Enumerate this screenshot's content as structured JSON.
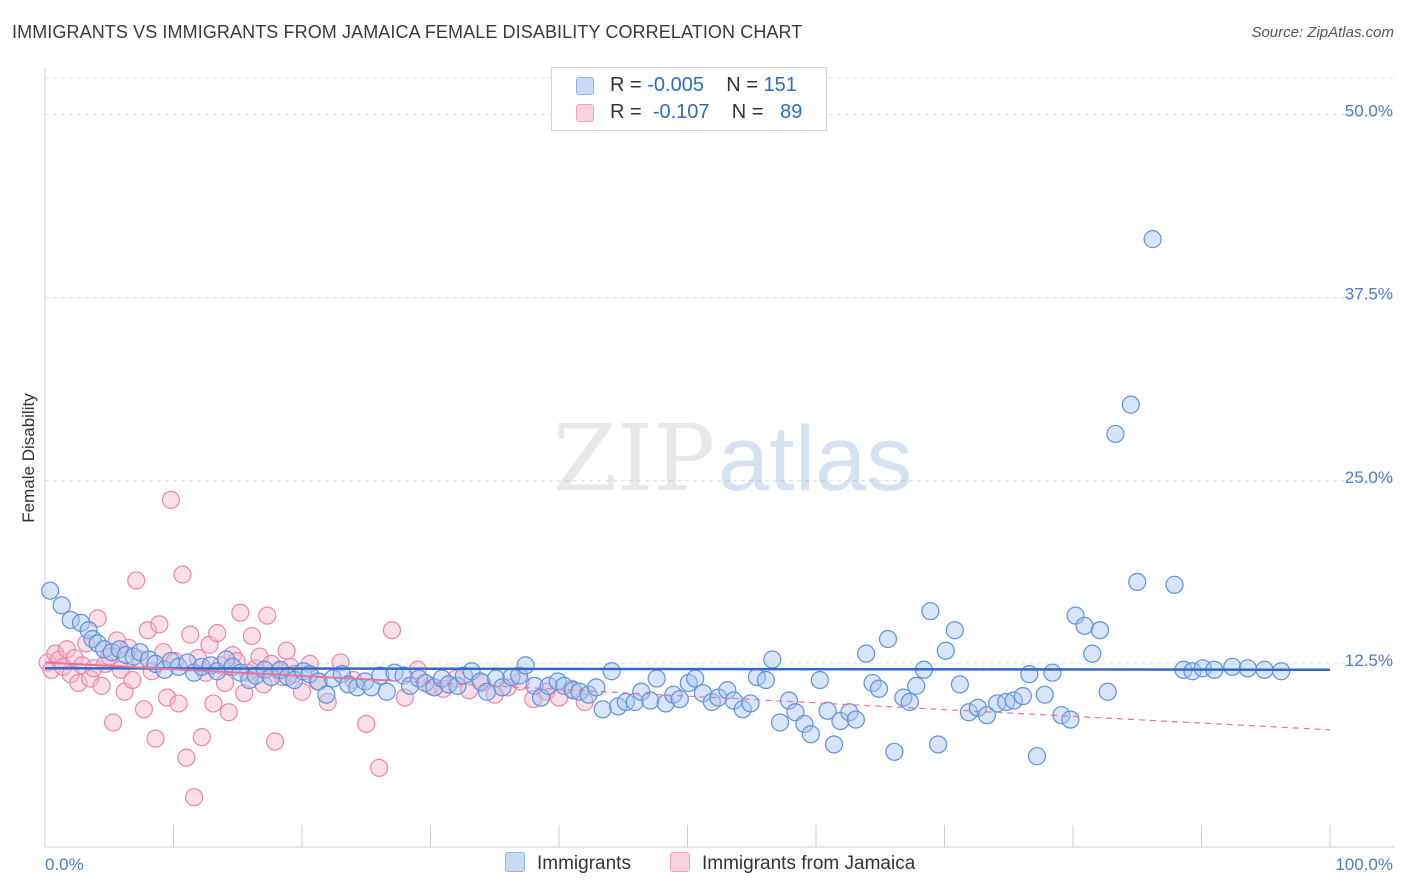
{
  "title": "IMMIGRANTS VS IMMIGRANTS FROM JAMAICA FEMALE DISABILITY CORRELATION CHART",
  "source": "Source: ZipAtlas.com",
  "watermark": {
    "zip": "ZIP",
    "atlas": "atlas"
  },
  "legend": {
    "rows": [
      {
        "r_label": "R =",
        "r_value": "-0.005",
        "n_label": "N =",
        "n_value": "151",
        "color": "#8fb4e8"
      },
      {
        "r_label": "R =",
        "r_value": "-0.107",
        "n_label": "N =",
        "n_value": "89",
        "color": "#f2a3bd"
      }
    ]
  },
  "bottom_legend": [
    {
      "label": "Immigrants",
      "color": "#8fb4e8"
    },
    {
      "label": "Immigrants from Jamaica",
      "color": "#f2a3bd"
    }
  ],
  "chart_data": {
    "type": "scatter",
    "title": "IMMIGRANTS VS IMMIGRANTS FROM JAMAICA FEMALE DISABILITY CORRELATION CHART",
    "xlabel": "",
    "ylabel": "Female Disability",
    "xlim": [
      0,
      100
    ],
    "ylim": [
      0,
      52.5
    ],
    "x_tick_labels": [
      "0.0%",
      "100.0%"
    ],
    "y_ticks": [
      12.5,
      25.0,
      37.5,
      50.0
    ],
    "y_tick_labels": [
      "12.5%",
      "25.0%",
      "37.5%",
      "50.0%"
    ],
    "grid": "horizontal dashed",
    "legend_position": "top-center",
    "series": [
      {
        "name": "Immigrants",
        "color": "#6f9be0",
        "trend": {
          "x": [
            0,
            100
          ],
          "y": [
            12.2,
            12.1
          ],
          "style": "solid",
          "color": "#2f6ac9"
        },
        "points": [
          [
            0.4,
            17.5
          ],
          [
            1.3,
            16.5
          ],
          [
            2.0,
            15.5
          ],
          [
            2.8,
            15.3
          ],
          [
            3.4,
            14.8
          ],
          [
            3.7,
            14.2
          ],
          [
            4.1,
            13.9
          ],
          [
            4.6,
            13.5
          ],
          [
            5.2,
            13.3
          ],
          [
            5.8,
            13.5
          ],
          [
            6.3,
            13.1
          ],
          [
            6.9,
            13.0
          ],
          [
            7.4,
            13.3
          ],
          [
            8.1,
            12.8
          ],
          [
            8.6,
            12.5
          ],
          [
            9.3,
            12.1
          ],
          [
            9.8,
            12.7
          ],
          [
            10.4,
            12.3
          ],
          [
            11.1,
            12.6
          ],
          [
            11.6,
            11.9
          ],
          [
            12.2,
            12.3
          ],
          [
            12.9,
            12.4
          ],
          [
            13.4,
            12.0
          ],
          [
            14.1,
            12.8
          ],
          [
            14.6,
            12.3
          ],
          [
            15.2,
            11.9
          ],
          [
            15.9,
            11.4
          ],
          [
            16.4,
            11.7
          ],
          [
            17.1,
            12.1
          ],
          [
            17.6,
            11.6
          ],
          [
            18.3,
            12.1
          ],
          [
            18.9,
            11.6
          ],
          [
            19.4,
            11.4
          ],
          [
            20.1,
            12.0
          ],
          [
            20.6,
            11.8
          ],
          [
            21.3,
            11.3
          ],
          [
            21.9,
            10.4
          ],
          [
            22.4,
            11.5
          ],
          [
            23.1,
            11.8
          ],
          [
            23.6,
            11.1
          ],
          [
            24.3,
            10.9
          ],
          [
            24.9,
            11.3
          ],
          [
            25.4,
            10.9
          ],
          [
            26.1,
            11.7
          ],
          [
            26.6,
            10.6
          ],
          [
            27.2,
            11.9
          ],
          [
            27.9,
            11.7
          ],
          [
            28.4,
            11.0
          ],
          [
            29.1,
            11.5
          ],
          [
            29.6,
            11.2
          ],
          [
            30.3,
            10.9
          ],
          [
            30.9,
            11.5
          ],
          [
            31.4,
            11.1
          ],
          [
            32.1,
            11.0
          ],
          [
            32.6,
            11.7
          ],
          [
            33.2,
            12.0
          ],
          [
            33.9,
            11.3
          ],
          [
            34.4,
            10.6
          ],
          [
            35.1,
            11.5
          ],
          [
            35.6,
            10.9
          ],
          [
            36.3,
            11.6
          ],
          [
            36.9,
            11.7
          ],
          [
            37.4,
            12.4
          ],
          [
            38.1,
            11.0
          ],
          [
            38.6,
            10.2
          ],
          [
            39.2,
            11.0
          ],
          [
            39.9,
            11.3
          ],
          [
            40.4,
            11.0
          ],
          [
            41.1,
            10.7
          ],
          [
            41.6,
            10.6
          ],
          [
            42.3,
            10.4
          ],
          [
            42.9,
            10.9
          ],
          [
            43.4,
            9.4
          ],
          [
            44.1,
            12.0
          ],
          [
            44.6,
            9.6
          ],
          [
            45.2,
            9.9
          ],
          [
            45.9,
            9.9
          ],
          [
            46.4,
            10.6
          ],
          [
            47.1,
            10.0
          ],
          [
            47.6,
            11.5
          ],
          [
            48.3,
            9.8
          ],
          [
            48.9,
            10.4
          ],
          [
            49.4,
            10.1
          ],
          [
            50.1,
            11.2
          ],
          [
            50.6,
            11.5
          ],
          [
            51.2,
            10.5
          ],
          [
            51.9,
            9.9
          ],
          [
            52.4,
            10.2
          ],
          [
            53.1,
            10.7
          ],
          [
            53.6,
            10.0
          ],
          [
            54.3,
            9.4
          ],
          [
            54.9,
            9.8
          ],
          [
            55.4,
            11.6
          ],
          [
            56.1,
            11.4
          ],
          [
            56.6,
            12.8
          ],
          [
            57.2,
            8.5
          ],
          [
            57.9,
            10.0
          ],
          [
            58.4,
            9.2
          ],
          [
            59.1,
            8.4
          ],
          [
            59.6,
            7.7
          ],
          [
            60.3,
            11.4
          ],
          [
            60.9,
            9.3
          ],
          [
            61.4,
            7.0
          ],
          [
            61.9,
            8.6
          ],
          [
            62.6,
            9.2
          ],
          [
            63.1,
            8.7
          ],
          [
            63.9,
            13.2
          ],
          [
            64.4,
            11.2
          ],
          [
            64.9,
            10.8
          ],
          [
            65.6,
            14.2
          ],
          [
            66.1,
            6.5
          ],
          [
            66.8,
            10.2
          ],
          [
            67.3,
            9.9
          ],
          [
            67.8,
            11.0
          ],
          [
            68.4,
            12.1
          ],
          [
            68.9,
            16.1
          ],
          [
            69.5,
            7.0
          ],
          [
            70.1,
            13.4
          ],
          [
            70.8,
            14.8
          ],
          [
            71.2,
            11.1
          ],
          [
            71.9,
            9.2
          ],
          [
            72.6,
            9.5
          ],
          [
            73.3,
            9.0
          ],
          [
            74.1,
            9.8
          ],
          [
            74.8,
            9.9
          ],
          [
            75.4,
            10.0
          ],
          [
            76.1,
            10.3
          ],
          [
            76.6,
            11.8
          ],
          [
            77.2,
            6.2
          ],
          [
            77.8,
            10.4
          ],
          [
            78.4,
            11.9
          ],
          [
            79.1,
            9.0
          ],
          [
            79.8,
            8.7
          ],
          [
            80.2,
            15.8
          ],
          [
            80.9,
            15.1
          ],
          [
            81.5,
            13.2
          ],
          [
            82.1,
            14.8
          ],
          [
            82.7,
            10.6
          ],
          [
            83.3,
            28.2
          ],
          [
            84.5,
            30.2
          ],
          [
            85.0,
            18.1
          ],
          [
            86.2,
            41.5
          ],
          [
            87.9,
            17.9
          ],
          [
            88.6,
            12.1
          ],
          [
            89.3,
            12.0
          ],
          [
            90.1,
            12.2
          ],
          [
            91.0,
            12.1
          ],
          [
            92.4,
            12.3
          ],
          [
            93.6,
            12.2
          ],
          [
            94.9,
            12.1
          ],
          [
            96.2,
            12.0
          ]
        ]
      },
      {
        "name": "Immigrants from Jamaica",
        "color": "#f08fb0",
        "trend": {
          "x": [
            0,
            100
          ],
          "y": [
            12.6,
            8.0
          ],
          "style": "solid-then-dashed",
          "color": "#e8739a"
        },
        "points": [
          [
            0.2,
            12.6
          ],
          [
            0.5,
            12.1
          ],
          [
            0.8,
            13.2
          ],
          [
            1.1,
            12.8
          ],
          [
            1.4,
            12.3
          ],
          [
            1.7,
            13.5
          ],
          [
            2.0,
            11.8
          ],
          [
            2.3,
            12.9
          ],
          [
            2.6,
            11.2
          ],
          [
            2.9,
            12.4
          ],
          [
            3.2,
            13.9
          ],
          [
            3.5,
            11.5
          ],
          [
            3.8,
            12.2
          ],
          [
            4.1,
            15.6
          ],
          [
            4.4,
            11.0
          ],
          [
            4.7,
            12.5
          ],
          [
            5.0,
            13.0
          ],
          [
            5.3,
            8.5
          ],
          [
            5.6,
            14.1
          ],
          [
            5.9,
            12.1
          ],
          [
            6.2,
            10.6
          ],
          [
            6.5,
            13.6
          ],
          [
            6.8,
            11.4
          ],
          [
            7.1,
            18.2
          ],
          [
            7.4,
            12.8
          ],
          [
            7.7,
            9.4
          ],
          [
            8.0,
            14.8
          ],
          [
            8.3,
            12.0
          ],
          [
            8.6,
            7.4
          ],
          [
            8.9,
            15.2
          ],
          [
            9.2,
            13.3
          ],
          [
            9.5,
            10.2
          ],
          [
            9.8,
            23.7
          ],
          [
            10.1,
            12.7
          ],
          [
            10.4,
            9.8
          ],
          [
            10.7,
            18.6
          ],
          [
            11.0,
            6.1
          ],
          [
            11.3,
            14.5
          ],
          [
            11.6,
            3.4
          ],
          [
            11.9,
            12.9
          ],
          [
            12.2,
            7.5
          ],
          [
            12.5,
            11.9
          ],
          [
            12.8,
            13.8
          ],
          [
            13.1,
            9.8
          ],
          [
            13.4,
            14.6
          ],
          [
            13.7,
            12.4
          ],
          [
            14.0,
            11.2
          ],
          [
            14.3,
            9.2
          ],
          [
            14.6,
            13.1
          ],
          [
            14.9,
            12.7
          ],
          [
            15.2,
            16.0
          ],
          [
            15.5,
            10.5
          ],
          [
            15.8,
            11.9
          ],
          [
            16.1,
            14.4
          ],
          [
            16.4,
            12.2
          ],
          [
            16.7,
            13.0
          ],
          [
            17.0,
            11.1
          ],
          [
            17.3,
            15.8
          ],
          [
            17.6,
            12.5
          ],
          [
            17.9,
            7.2
          ],
          [
            18.2,
            12.0
          ],
          [
            18.5,
            11.6
          ],
          [
            18.8,
            13.4
          ],
          [
            19.1,
            12.3
          ],
          [
            19.4,
            11.8
          ],
          [
            20.0,
            10.6
          ],
          [
            20.6,
            12.5
          ],
          [
            21.2,
            11.3
          ],
          [
            22.0,
            9.9
          ],
          [
            23.0,
            12.6
          ],
          [
            24.0,
            11.4
          ],
          [
            25.0,
            8.4
          ],
          [
            26.0,
            5.4
          ],
          [
            27.0,
            14.8
          ],
          [
            28.0,
            10.2
          ],
          [
            29.0,
            12.1
          ],
          [
            30.0,
            11.0
          ],
          [
            31.0,
            10.8
          ],
          [
            32.0,
            11.5
          ],
          [
            33.0,
            10.7
          ],
          [
            34.0,
            11.2
          ],
          [
            35.0,
            10.4
          ],
          [
            36.0,
            10.9
          ],
          [
            37.0,
            11.3
          ],
          [
            38.0,
            10.1
          ],
          [
            39.0,
            10.6
          ],
          [
            40.0,
            10.2
          ],
          [
            41.0,
            10.8
          ],
          [
            42.0,
            9.9
          ]
        ]
      }
    ]
  }
}
